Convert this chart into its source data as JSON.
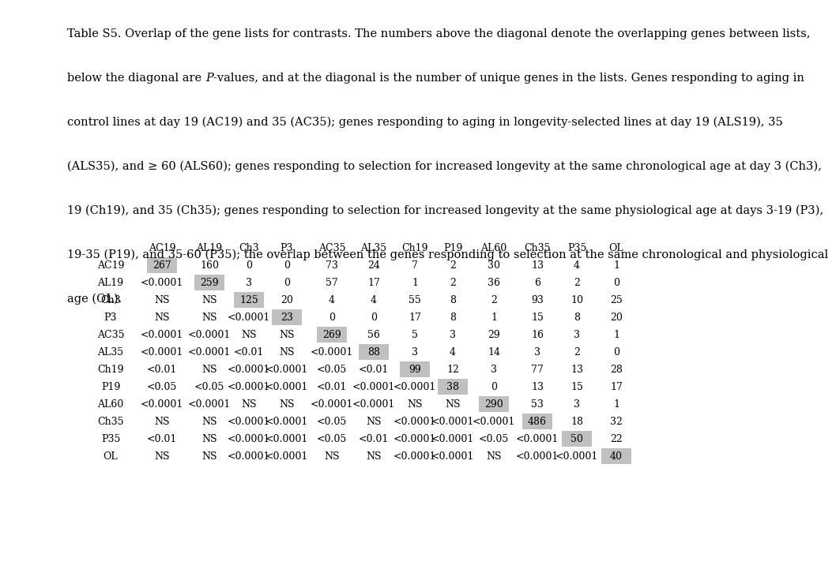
{
  "title_lines": [
    "Table S5. Overlap of the gene lists for contrasts. The numbers above the diagonal denote the overlapping genes between lists,",
    "",
    "below the diagonal are ℱ-values, and at the diagonal is the number of unique genes in the lists. Genes responding to aging in",
    "",
    "control lines at day 19 (AC19) and 35 (AC35); genes responding to aging in longevity-selected lines at day 19 (ALS19), 35",
    "",
    "(ALS35), and ≥ 60 (ALS60); genes responding to selection for increased longevity at the same chronological age at day 3 (Ch3),",
    "",
    "19 (Ch19), and 35 (Ch35); genes responding to selection for increased longevity at the same physiological age at days 3-19 (P3),",
    "",
    "19-35 (P19), and 35-60 (P35); the overlap between the genes responding to selection at the same chronological and physiological",
    "",
    "age (OL)."
  ],
  "title_lines_italic_word": [
    [
      false,
      false
    ],
    [
      false,
      false
    ],
    [
      true,
      false
    ],
    [
      false,
      false
    ],
    [
      false,
      false
    ],
    [
      false,
      false
    ],
    [
      false,
      false
    ],
    [
      false,
      false
    ],
    [
      false,
      false
    ],
    [
      false,
      false
    ],
    [
      false,
      false
    ],
    [
      false,
      false
    ],
    [
      false,
      false
    ]
  ],
  "col_headers": [
    "AC19",
    "AL19",
    "Ch3",
    "P3",
    "AC35",
    "AL35",
    "Ch19",
    "P19",
    "AL60",
    "Ch35",
    "P35",
    "OL"
  ],
  "row_headers": [
    "AC19",
    "AL19",
    "Ch3",
    "P3",
    "AC35",
    "AL35",
    "Ch19",
    "P19",
    "AL60",
    "Ch35",
    "P35",
    "OL"
  ],
  "table_data": [
    [
      "267",
      "160",
      "0",
      "0",
      "73",
      "24",
      "7",
      "2",
      "30",
      "13",
      "4",
      "1"
    ],
    [
      "<0.0001",
      "259",
      "3",
      "0",
      "57",
      "17",
      "1",
      "2",
      "36",
      "6",
      "2",
      "0"
    ],
    [
      "NS",
      "NS",
      "125",
      "20",
      "4",
      "4",
      "55",
      "8",
      "2",
      "93",
      "10",
      "25"
    ],
    [
      "NS",
      "NS",
      "<0.0001",
      "23",
      "0",
      "0",
      "17",
      "8",
      "1",
      "15",
      "8",
      "20"
    ],
    [
      "<0.0001",
      "<0.0001",
      "NS",
      "NS",
      "269",
      "56",
      "5",
      "3",
      "29",
      "16",
      "3",
      "1"
    ],
    [
      "<0.0001",
      "<0.0001",
      "<0.01",
      "NS",
      "<0.0001",
      "88",
      "3",
      "4",
      "14",
      "3",
      "2",
      "0"
    ],
    [
      "<0.01",
      "NS",
      "<0.0001",
      "<0.0001",
      "<0.05",
      "<0.01",
      "99",
      "12",
      "3",
      "77",
      "13",
      "28"
    ],
    [
      "<0.05",
      "<0.05",
      "<0.0001",
      "<0.0001",
      "<0.01",
      "<0.0001",
      "<0.0001",
      "38",
      "0",
      "13",
      "15",
      "17"
    ],
    [
      "<0.0001",
      "<0.0001",
      "NS",
      "NS",
      "<0.0001",
      "<0.0001",
      "NS",
      "NS",
      "290",
      "53",
      "3",
      "1"
    ],
    [
      "NS",
      "NS",
      "<0.0001",
      "<0.0001",
      "<0.05",
      "NS",
      "<0.0001",
      "<0.0001",
      "<0.0001",
      "486",
      "18",
      "32"
    ],
    [
      "<0.01",
      "NS",
      "<0.0001",
      "<0.0001",
      "<0.05",
      "<0.01",
      "<0.0001",
      "<0.0001",
      "<0.05",
      "<0.0001",
      "50",
      "22"
    ],
    [
      "NS",
      "NS",
      "<0.0001",
      "<0.0001",
      "NS",
      "NS",
      "<0.0001",
      "<0.0001",
      "NS",
      "<0.0001",
      "<0.0001",
      "40"
    ]
  ],
  "diagonal_color": "#c0c0c0",
  "bg_color": "#ffffff",
  "font_size": 9.0,
  "header_font_size": 9.0,
  "title_font_size": 10.5
}
